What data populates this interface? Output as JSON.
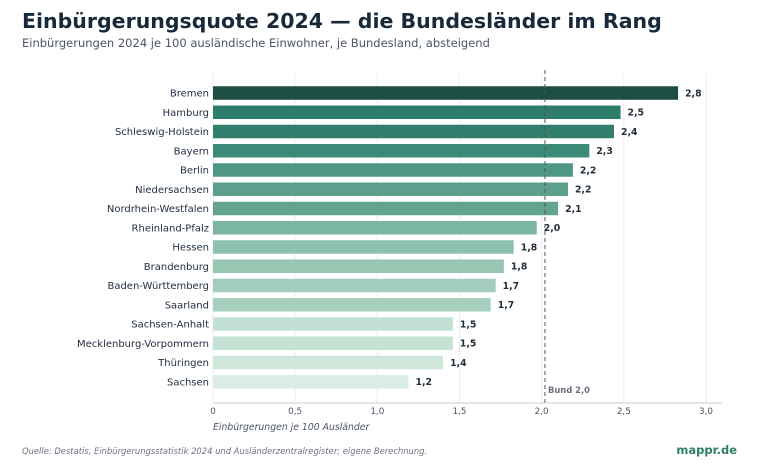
{
  "header": {
    "title": "Einbürgerungsquote 2024 — die Bundesländer im Rang",
    "subtitle": "Einbürgerungen 2024 je 100 ausländische Einwohner, je Bundesland, absteigend"
  },
  "footer": {
    "source": "Quelle: Destatis, Einbürgerungsstatistik 2024 und Ausländerzentralregister; eigene Berechnung.",
    "brand": "mappr.de"
  },
  "chart_data": {
    "type": "bar",
    "orientation": "horizontal",
    "categories": [
      "Bremen",
      "Hamburg",
      "Schleswig-Holstein",
      "Bayern",
      "Berlin",
      "Niedersachsen",
      "Nordrhein-Westfalen",
      "Rheinland-Pfalz",
      "Hessen",
      "Brandenburg",
      "Baden-Württemberg",
      "Saarland",
      "Sachsen-Anhalt",
      "Mecklenburg-Vorpommern",
      "Thüringen",
      "Sachsen"
    ],
    "values": [
      2.83,
      2.48,
      2.44,
      2.29,
      2.19,
      2.16,
      2.1,
      1.97,
      1.83,
      1.77,
      1.72,
      1.69,
      1.46,
      1.46,
      1.4,
      1.19
    ],
    "value_labels": [
      "2,8",
      "2,5",
      "2,4",
      "2,3",
      "2,2",
      "2,2",
      "2,1",
      "2,0",
      "1,8",
      "1,8",
      "1,7",
      "1,7",
      "1,5",
      "1,5",
      "1,4",
      "1,2"
    ],
    "colors": [
      "#1e4d43",
      "#2e7d6c",
      "#317e6d",
      "#3c8a78",
      "#4f9785",
      "#5b9f8c",
      "#62a48f",
      "#7ab6a1",
      "#8dc1ad",
      "#97c7b3",
      "#a2ccbb",
      "#a6cfbd",
      "#c2e0d3",
      "#c5e2d5",
      "#cfe6db",
      "#dbeee5"
    ],
    "xlim": [
      0,
      3.0
    ],
    "xticks": [
      0,
      0.5,
      1.0,
      1.5,
      2.0,
      2.5,
      3.0
    ],
    "xtick_labels": [
      "0",
      "0,5",
      "1,0",
      "1,5",
      "2,0",
      "2,5",
      "3,0"
    ],
    "xlabel": "Einbürgerungen je 100 Ausländer",
    "reference_line": {
      "value": 2.02,
      "label": "Bund 2,0"
    },
    "grid": true
  }
}
